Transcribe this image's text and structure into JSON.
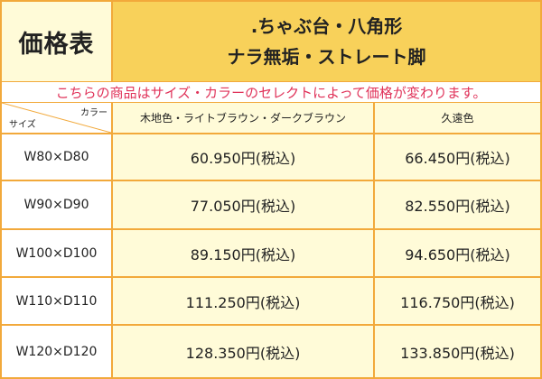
{
  "header": {
    "badge": "価格表",
    "title_line1": ".ちゃぶ台・八角形",
    "title_line2": "ナラ無垢・ストレート脚"
  },
  "notice": "こちらの商品はサイズ・カラーのセレクトによって価格が変わります。",
  "table": {
    "corner_color_label": "カラー",
    "corner_size_label": "サイズ",
    "columns": [
      "木地色・ライトブラウン・ダークブラウン",
      "久遠色"
    ],
    "rows": [
      {
        "size": "W80×D80",
        "prices": [
          "60.950円(税込)",
          "66.450円(税込)"
        ]
      },
      {
        "size": "W90×D90",
        "prices": [
          "77.050円(税込)",
          "82.550円(税込)"
        ]
      },
      {
        "size": "W100×D100",
        "prices": [
          "89.150円(税込)",
          "94.650円(税込)"
        ]
      },
      {
        "size": "W110×D110",
        "prices": [
          "111.250円(税込)",
          "116.750円(税込)"
        ]
      },
      {
        "size": "W120×D120",
        "prices": [
          "128.350円(税込)",
          "133.850円(税込)"
        ]
      }
    ]
  },
  "colors": {
    "border": "#f2a93b",
    "title_bg": "#f8d15a",
    "cell_bg": "#fffbd8",
    "notice_text": "#e0335a"
  }
}
